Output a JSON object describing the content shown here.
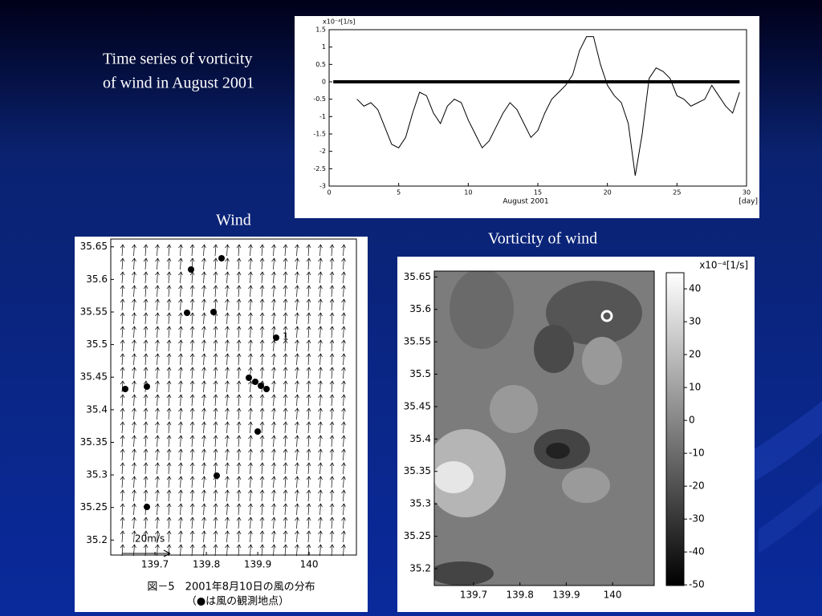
{
  "slide": {
    "heading": [
      "Time series of vorticity",
      "of wind in August 2001"
    ]
  },
  "chart_data": [
    {
      "type": "line",
      "unit_label": "x10⁻⁴[1/s]",
      "x_label": "August 2001",
      "x_unit": "[day]",
      "x": [
        2,
        2.5,
        3,
        3.5,
        4,
        4.5,
        5,
        5.5,
        6,
        6.5,
        7,
        7.5,
        8,
        8.5,
        9,
        9.5,
        10,
        10.5,
        11,
        11.5,
        12,
        12.5,
        13,
        13.5,
        14,
        14.5,
        15,
        15.5,
        16,
        16.5,
        17,
        17.5,
        18,
        18.5,
        19,
        19.5,
        20,
        20.5,
        21,
        21.5,
        22,
        22.5,
        23,
        23.5,
        24,
        24.5,
        25,
        25.5,
        26,
        26.5,
        27,
        27.5,
        28,
        28.5,
        29,
        29.5
      ],
      "series": [
        {
          "color": "#000000",
          "values": [
            -0.5,
            -0.7,
            -0.6,
            -0.8,
            -1.3,
            -1.8,
            -1.9,
            -1.6,
            -0.9,
            -0.3,
            -0.4,
            -0.9,
            -1.2,
            -0.7,
            -0.5,
            -0.6,
            -1.1,
            -1.5,
            -1.9,
            -1.7,
            -1.3,
            -0.9,
            -0.6,
            -0.8,
            -1.2,
            -1.6,
            -1.4,
            -0.9,
            -0.5,
            -0.3,
            -0.1,
            0.2,
            0.9,
            1.3,
            1.3,
            0.5,
            -0.1,
            -0.4,
            -0.6,
            -1.2,
            -2.7,
            -1.5,
            0.1,
            0.4,
            0.3,
            0.1,
            -0.4,
            -0.5,
            -0.7,
            -0.6,
            -0.5,
            -0.1,
            -0.4,
            -0.7,
            -0.9,
            -0.3
          ]
        }
      ],
      "hline": 0,
      "xlim": [
        0,
        30
      ],
      "xticks": [
        0,
        5,
        10,
        15,
        20,
        25,
        30
      ],
      "ylim": [
        -3,
        1.5
      ],
      "yticks": [
        -3,
        -2.5,
        -2,
        -1.5,
        -1,
        -0.5,
        0,
        0.5,
        1,
        1.5
      ]
    },
    {
      "type": "vector-map",
      "title": "Wind",
      "scale_label": "20m/s",
      "point_label": "1",
      "caption": [
        "図－5　2001年8月10日の風の分布",
        "（●は風の観測地点）"
      ],
      "xlim": [
        139.614,
        140.092
      ],
      "xticks": [
        139.7,
        139.8,
        139.9,
        140
      ],
      "ylim": [
        35.177,
        35.662
      ],
      "yticks": [
        35.2,
        35.25,
        35.3,
        35.35,
        35.4,
        35.45,
        35.5,
        35.55,
        35.6,
        35.65
      ]
    },
    {
      "type": "contour-map",
      "title": "Vorticity of wind",
      "unit_label": "x10⁻⁴[1/s]",
      "xlim": [
        139.615,
        140.09
      ],
      "xticks": [
        139.7,
        139.8,
        139.9,
        140
      ],
      "ylim": [
        35.174,
        35.659
      ],
      "yticks": [
        35.2,
        35.25,
        35.3,
        35.35,
        35.4,
        35.45,
        35.5,
        35.55,
        35.6,
        35.65
      ],
      "clim": [
        -50.2,
        44.9
      ],
      "cticks": [
        -50,
        -40,
        -30,
        -20,
        -10,
        0,
        10,
        20,
        30,
        40
      ]
    }
  ]
}
